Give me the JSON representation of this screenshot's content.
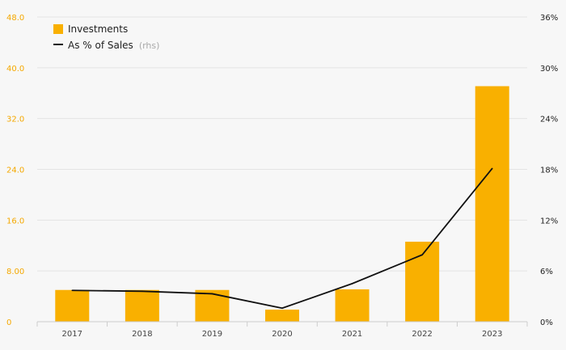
{
  "chart_data": {
    "type": "bar",
    "categories": [
      "2017",
      "2018",
      "2019",
      "2020",
      "2021",
      "2022",
      "2023"
    ],
    "series": [
      {
        "name": "Investments",
        "type": "bar",
        "axis": "left",
        "color": "#f9b000",
        "values": [
          5.0,
          5.0,
          5.0,
          1.9,
          5.1,
          12.6,
          37.1
        ]
      },
      {
        "name": "As % of Sales",
        "name_suffix": "(rhs)",
        "type": "line",
        "axis": "right",
        "color": "#111111",
        "values": [
          3.7,
          3.6,
          3.3,
          1.6,
          4.5,
          7.9,
          18.1
        ]
      }
    ],
    "y_left": {
      "ylim": [
        0,
        48
      ],
      "ticks": [
        0,
        8,
        16,
        24,
        32,
        40,
        48
      ],
      "tick_labels": [
        "0",
        "8.00",
        "16.0",
        "24.0",
        "32.0",
        "40.0",
        "48.0"
      ],
      "color": "#f5a800"
    },
    "y_right": {
      "ylim": [
        0,
        36
      ],
      "ticks": [
        0,
        6,
        12,
        18,
        24,
        30,
        36
      ],
      "tick_labels": [
        "0%",
        "6%",
        "12%",
        "18%",
        "24%",
        "30%",
        "36%"
      ]
    },
    "grid": true,
    "legend_position": "top-left"
  }
}
